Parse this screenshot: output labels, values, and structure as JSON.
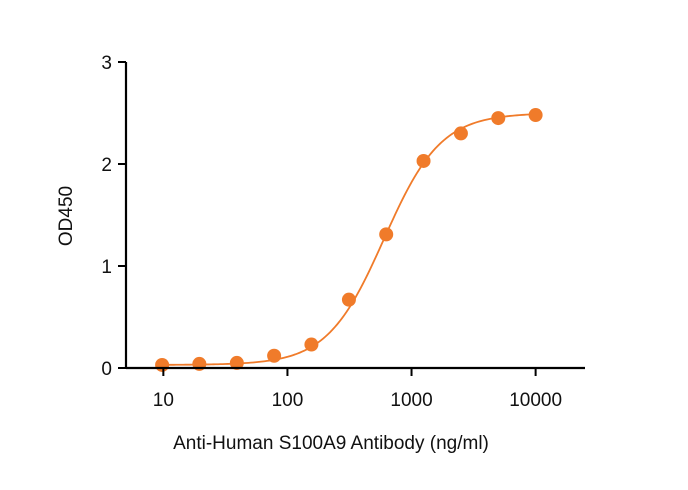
{
  "chart_data": {
    "type": "scatter",
    "title": "",
    "xlabel": "Anti-Human S100A9 Antibody (ng/ml)",
    "ylabel": "OD450",
    "x_scale": "log",
    "xlim": [
      5,
      25000
    ],
    "ylim": [
      0,
      3
    ],
    "x_ticks": [
      10,
      100,
      1000,
      10000
    ],
    "x_tick_labels": [
      "10",
      "100",
      "1000",
      "10000"
    ],
    "y_ticks": [
      0,
      1,
      2,
      3
    ],
    "y_tick_labels": [
      "0",
      "1",
      "2",
      "3"
    ],
    "grid": false,
    "legend": "none",
    "color": "#F07B2A",
    "fit": {
      "type": "4PL",
      "bottom": 0.03,
      "top": 2.5,
      "ec50": 600,
      "hill": 1.9
    },
    "series": [
      {
        "x": [
          9.77,
          19.5,
          39.1,
          78.1,
          156,
          313,
          625,
          1250,
          2500,
          5000,
          10000
        ],
        "y": [
          0.03,
          0.04,
          0.05,
          0.12,
          0.23,
          0.67,
          1.31,
          2.03,
          2.3,
          2.45,
          2.48
        ]
      }
    ]
  }
}
